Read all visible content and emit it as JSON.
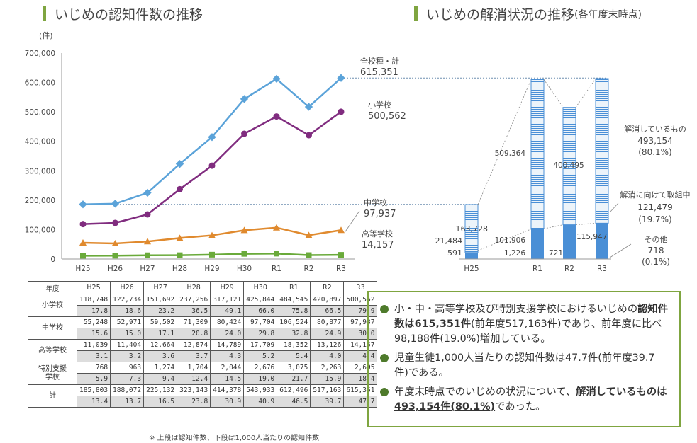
{
  "left_title": "いじめの認知件数の推移",
  "right_title": "いじめの解消状況の推移",
  "right_title_sub": "(各年度末時点)",
  "colors": {
    "accent": "#7fa540",
    "total": "#5ba3d9",
    "elementary": "#802c7f",
    "junior": "#6e8fb0",
    "high": "#e08a2e",
    "special": "#6aaa3a",
    "bar": "#4a8fd6"
  },
  "chart_data": [
    {
      "type": "line",
      "ylabel_unit": "(件)",
      "ylim": [
        0,
        700000
      ],
      "yticks": [
        "700,000",
        "600,000",
        "500,000",
        "400,000",
        "300,000",
        "200,000",
        "100,000",
        "0"
      ],
      "categories": [
        "H25",
        "H26",
        "H27",
        "H28",
        "H29",
        "H30",
        "R1",
        "R2",
        "R3"
      ],
      "series": [
        {
          "name": "全校種・計",
          "last_label": "615,351",
          "color": "#5ba3d9",
          "values": [
            185803,
            188072,
            225132,
            323143,
            414378,
            543933,
            612496,
            517163,
            615351
          ]
        },
        {
          "name": "小学校",
          "last_label": "500,562",
          "color": "#802c7f",
          "values": [
            118748,
            122734,
            151692,
            237256,
            317121,
            425844,
            484545,
            420897,
            500562
          ]
        },
        {
          "name": "中学校",
          "last_label": "97,937",
          "color": "#e08a2e",
          "values": [
            55248,
            52971,
            59502,
            71309,
            80424,
            97704,
            106524,
            80877,
            97937
          ]
        },
        {
          "name": "高等学校",
          "last_label": "14,157",
          "color": "#6aaa3a",
          "values": [
            11039,
            11404,
            12664,
            12874,
            14789,
            17709,
            18352,
            13126,
            14157
          ]
        }
      ]
    },
    {
      "type": "bar",
      "categories": [
        "H25",
        "R1",
        "R2",
        "R3"
      ],
      "totals": [
        185803,
        612496,
        517163,
        615351
      ],
      "resolved": [
        163728,
        509364,
        400495,
        493154
      ],
      "in_progress": [
        21484,
        101906,
        115947,
        121479
      ],
      "other": [
        591,
        1226,
        721,
        718
      ],
      "labels": {
        "resolved_name": "解消しているもの",
        "resolved_value": "493,154",
        "resolved_pct": "(80.1%)",
        "progress_name": "解消に向けて取組中",
        "progress_value": "121,479",
        "progress_pct": "(19.7%)",
        "other_name": "その他",
        "other_value": "718",
        "other_pct": "(0.1%)",
        "h25_resolved": "163,728",
        "h25_progress": "21,484",
        "h25_other": "591",
        "r1_resolved": "509,364",
        "r1_progress": "101,906",
        "r1_other": "1,226",
        "r2_resolved": "400,495",
        "r2_progress": "115,947",
        "r2_other": "721"
      }
    }
  ],
  "table": {
    "headers": [
      "年度",
      "H25",
      "H26",
      "H27",
      "H28",
      "H29",
      "H30",
      "R1",
      "R2",
      "R3"
    ],
    "rows": [
      {
        "category": "小学校",
        "counts": [
          "118,748",
          "122,734",
          "151,692",
          "237,256",
          "317,121",
          "425,844",
          "484,545",
          "420,897",
          "500,562"
        ],
        "rates": [
          "17.8",
          "18.6",
          "23.2",
          "36.5",
          "49.1",
          "66.0",
          "75.8",
          "66.5",
          "79.9"
        ]
      },
      {
        "category": "中学校",
        "counts": [
          "55,248",
          "52,971",
          "59,502",
          "71,309",
          "80,424",
          "97,704",
          "106,524",
          "80,877",
          "97,937"
        ],
        "rates": [
          "15.6",
          "15.0",
          "17.1",
          "20.8",
          "24.0",
          "29.8",
          "32.8",
          "24.9",
          "30.0"
        ]
      },
      {
        "category": "高等学校",
        "counts": [
          "11,039",
          "11,404",
          "12,664",
          "12,874",
          "14,789",
          "17,709",
          "18,352",
          "13,126",
          "14,157"
        ],
        "rates": [
          "3.1",
          "3.2",
          "3.6",
          "3.7",
          "4.3",
          "5.2",
          "5.4",
          "4.0",
          "4.4"
        ]
      },
      {
        "category": "特別支援\n学校",
        "counts": [
          "768",
          "963",
          "1,274",
          "1,704",
          "2,044",
          "2,676",
          "3,075",
          "2,263",
          "2,695"
        ],
        "rates": [
          "5.9",
          "7.3",
          "9.4",
          "12.4",
          "14.5",
          "19.0",
          "21.7",
          "15.9",
          "18.4"
        ]
      },
      {
        "category": "計",
        "counts": [
          "185,803",
          "188,072",
          "225,132",
          "323,143",
          "414,378",
          "543,933",
          "612,496",
          "517,163",
          "615,351"
        ],
        "rates": [
          "13.4",
          "13.7",
          "16.5",
          "23.8",
          "30.9",
          "40.9",
          "46.5",
          "39.7",
          "47.7"
        ]
      }
    ],
    "note": "※ 上段は認知件数、下段は1,000人当たりの認知件数"
  },
  "summary": {
    "b1_pre": "小・中・高等学校及び特別支援学校におけるいじめの",
    "b1_bold": "認知件数は615,351件",
    "b1_post": "(前年度517,163件)であり、前年度に比べ98,188件(19.0%)増加している。",
    "b2": "児童生徒1,000人当たりの認知件数は47.7件(前年度39.7件)である。",
    "b3_pre": "年度末時点でのいじめの状況について、",
    "b3_bold": "解消しているものは493,154件(80.1%)",
    "b3_post": "であった。"
  }
}
